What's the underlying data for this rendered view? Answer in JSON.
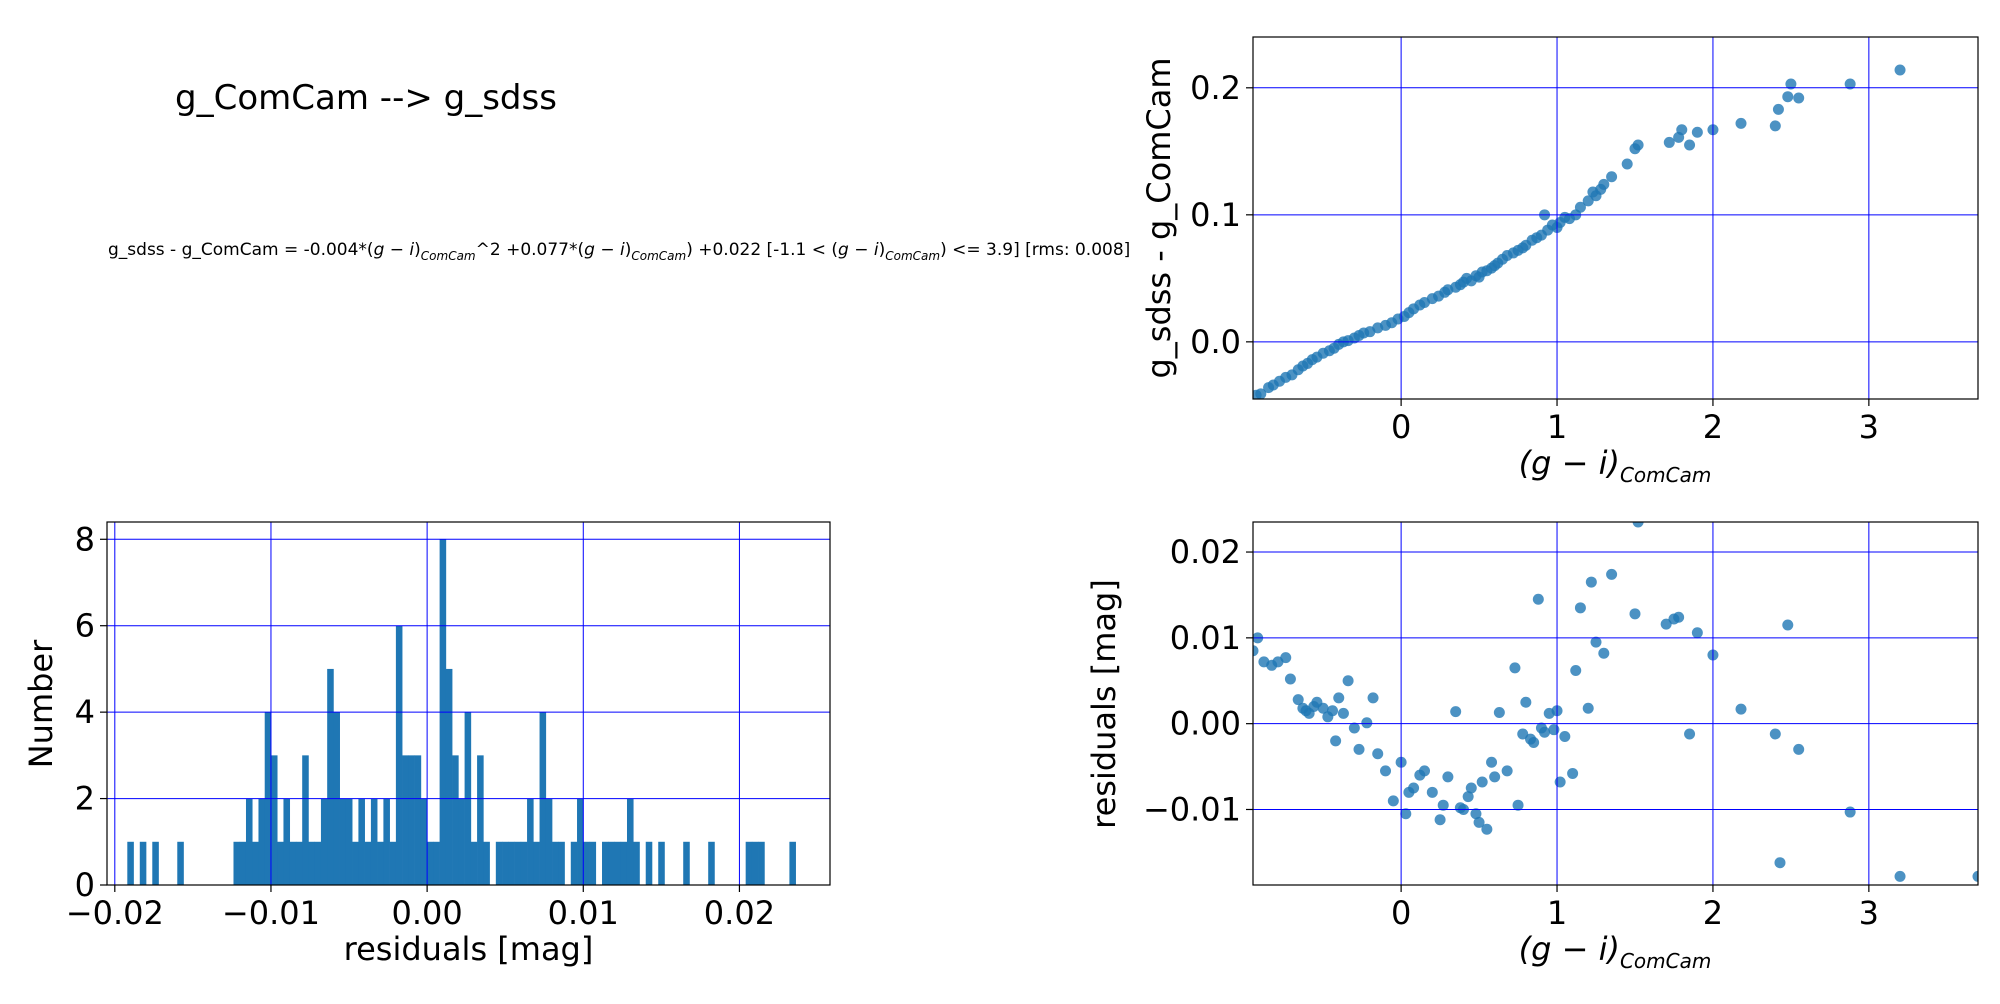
{
  "title": "g_ComCam --> g_sdss",
  "equation": {
    "prefix": "g_sdss - g_ComCam = -0.004*(",
    "var": "g − i",
    "sub": "ComCam",
    "p1": ")",
    "p2": "^2 +0.077*(",
    "p3": ") +0.022  [-1.1 < (",
    "p4": ") <= 3.9]  [rms: 0.008]"
  },
  "xlabel_color": {
    "main": "(g − i)",
    "sub": "ComCam"
  },
  "grid_color": "#0000ff",
  "marker_color": "#1f77b4",
  "chart_data": [
    {
      "id": "color-term",
      "type": "scatter",
      "ylabel": "g_sdss - g_ComCam",
      "xlim": [
        -0.95,
        3.7
      ],
      "ylim": [
        -0.045,
        0.24
      ],
      "xticks": [
        0,
        1,
        2,
        3
      ],
      "yticks": [
        0.0,
        0.1,
        0.2
      ],
      "ytick_labels": [
        "0.0",
        "0.1",
        "0.2"
      ],
      "grid": true,
      "x": [
        -0.93,
        -0.9,
        -0.85,
        -0.82,
        -0.78,
        -0.74,
        -0.7,
        -0.66,
        -0.63,
        -0.6,
        -0.57,
        -0.54,
        -0.5,
        -0.46,
        -0.43,
        -0.4,
        -0.37,
        -0.34,
        -0.3,
        -0.27,
        -0.24,
        -0.2,
        -0.15,
        -0.1,
        -0.06,
        -0.02,
        0.02,
        0.05,
        0.08,
        0.12,
        0.15,
        0.2,
        0.24,
        0.28,
        0.3,
        0.35,
        0.38,
        0.4,
        0.42,
        0.45,
        0.48,
        0.5,
        0.52,
        0.55,
        0.58,
        0.6,
        0.62,
        0.65,
        0.68,
        0.72,
        0.75,
        0.78,
        0.8,
        0.84,
        0.87,
        0.9,
        0.92,
        0.94,
        0.97,
        1.0,
        1.02,
        1.05,
        1.08,
        1.12,
        1.15,
        1.2,
        1.23,
        1.25,
        1.28,
        1.3,
        1.35,
        1.45,
        1.5,
        1.52,
        1.72,
        1.78,
        1.8,
        1.85,
        1.9,
        2.0,
        2.18,
        2.4,
        2.42,
        2.48,
        2.5,
        2.55,
        2.88,
        3.2
      ],
      "y": [
        -0.042,
        -0.041,
        -0.036,
        -0.034,
        -0.031,
        -0.028,
        -0.026,
        -0.022,
        -0.019,
        -0.017,
        -0.014,
        -0.012,
        -0.009,
        -0.007,
        -0.005,
        -0.002,
        0.0,
        0.001,
        0.003,
        0.005,
        0.007,
        0.008,
        0.011,
        0.013,
        0.015,
        0.018,
        0.02,
        0.023,
        0.026,
        0.029,
        0.031,
        0.034,
        0.036,
        0.039,
        0.041,
        0.043,
        0.045,
        0.047,
        0.05,
        0.048,
        0.052,
        0.051,
        0.055,
        0.056,
        0.058,
        0.06,
        0.062,
        0.065,
        0.068,
        0.07,
        0.072,
        0.074,
        0.076,
        0.08,
        0.082,
        0.084,
        0.1,
        0.088,
        0.092,
        0.09,
        0.094,
        0.098,
        0.097,
        0.1,
        0.106,
        0.111,
        0.118,
        0.115,
        0.12,
        0.124,
        0.13,
        0.14,
        0.152,
        0.155,
        0.157,
        0.161,
        0.167,
        0.155,
        0.165,
        0.167,
        0.172,
        0.17,
        0.183,
        0.193,
        0.203,
        0.192,
        0.203,
        0.214
      ]
    },
    {
      "id": "residual-histogram",
      "type": "bar",
      "xlabel": "residuals [mag]",
      "ylabel": "Number",
      "xlim": [
        -0.0205,
        0.0258
      ],
      "ylim": [
        0,
        8.4
      ],
      "xticks": [
        -0.02,
        -0.01,
        0.0,
        0.01,
        0.02
      ],
      "xtick_labels": [
        "−0.02",
        "−0.01",
        "0.00",
        "0.01",
        "0.02"
      ],
      "yticks": [
        0,
        2,
        4,
        6,
        8
      ],
      "ytick_labels": [
        "0",
        "2",
        "4",
        "6",
        "8"
      ],
      "grid": true,
      "bin_width": 0.00042,
      "bins": [
        -0.0192,
        -0.0184,
        -0.0176,
        -0.016,
        -0.0124,
        -0.012,
        -0.0116,
        -0.0112,
        -0.0108,
        -0.0104,
        -0.01,
        -0.0096,
        -0.0092,
        -0.0088,
        -0.0084,
        -0.008,
        -0.0076,
        -0.0072,
        -0.0068,
        -0.0064,
        -0.006,
        -0.0056,
        -0.0052,
        -0.0048,
        -0.0044,
        -0.004,
        -0.0036,
        -0.0032,
        -0.0028,
        -0.0024,
        -0.002,
        -0.0016,
        -0.0012,
        -0.0008,
        -0.0004,
        0.0,
        0.0004,
        0.0008,
        0.0012,
        0.0016,
        0.002,
        0.0024,
        0.0028,
        0.0032,
        0.0036,
        0.0044,
        0.0048,
        0.0052,
        0.0056,
        0.006,
        0.0064,
        0.0068,
        0.0072,
        0.0076,
        0.008,
        0.0084,
        0.0092,
        0.0096,
        0.01,
        0.0104,
        0.0112,
        0.0116,
        0.012,
        0.0124,
        0.0128,
        0.0132,
        0.014,
        0.0148,
        0.0164,
        0.018,
        0.0204,
        0.0208,
        0.0212,
        0.0232
      ],
      "values": [
        1,
        1,
        1,
        1,
        1,
        1,
        2,
        1,
        2,
        4,
        3,
        1,
        2,
        1,
        1,
        3,
        1,
        1,
        2,
        5,
        4,
        2,
        2,
        1,
        2,
        1,
        2,
        1,
        2,
        1,
        6,
        3,
        3,
        3,
        2,
        1,
        1,
        8,
        5,
        3,
        2,
        4,
        1,
        3,
        1,
        1,
        1,
        1,
        1,
        1,
        2,
        1,
        4,
        2,
        1,
        1,
        1,
        2,
        1,
        1,
        1,
        1,
        1,
        1,
        2,
        1,
        1,
        1,
        1,
        1,
        1,
        1,
        1,
        1
      ]
    },
    {
      "id": "residuals-vs-color",
      "type": "scatter",
      "ylabel": "residuals [mag]",
      "xlim": [
        -0.95,
        3.7
      ],
      "ylim": [
        -0.0188,
        0.0235
      ],
      "xticks": [
        0,
        1,
        2,
        3
      ],
      "yticks": [
        -0.01,
        0.0,
        0.01,
        0.02
      ],
      "ytick_labels": [
        "−0.01",
        "0.00",
        "0.01",
        "0.02"
      ],
      "grid": true,
      "x": [
        -0.95,
        -0.92,
        -0.88,
        -0.83,
        -0.79,
        -0.74,
        -0.71,
        -0.66,
        -0.63,
        -0.61,
        -0.59,
        -0.56,
        -0.54,
        -0.5,
        -0.47,
        -0.44,
        -0.42,
        -0.4,
        -0.37,
        -0.34,
        -0.3,
        -0.27,
        -0.22,
        -0.18,
        -0.15,
        -0.1,
        -0.05,
        0.0,
        0.03,
        0.05,
        0.08,
        0.12,
        0.15,
        0.2,
        0.25,
        0.27,
        0.3,
        0.35,
        0.38,
        0.4,
        0.43,
        0.45,
        0.48,
        0.5,
        0.52,
        0.55,
        0.58,
        0.6,
        0.63,
        0.68,
        0.73,
        0.75,
        0.78,
        0.8,
        0.83,
        0.85,
        0.88,
        0.9,
        0.92,
        0.95,
        0.98,
        1.0,
        1.02,
        1.05,
        1.1,
        1.12,
        1.15,
        1.2,
        1.22,
        1.25,
        1.3,
        1.35,
        1.5,
        1.52,
        1.7,
        1.75,
        1.78,
        1.85,
        1.9,
        2.0,
        2.18,
        2.4,
        2.43,
        2.48,
        2.55,
        2.88,
        3.2,
        3.7
      ],
      "y": [
        0.0085,
        0.01,
        0.0072,
        0.0068,
        0.0072,
        0.0077,
        0.0052,
        0.0028,
        0.0018,
        0.0015,
        0.0012,
        0.002,
        0.0025,
        0.0018,
        0.0008,
        0.0015,
        -0.002,
        0.003,
        0.0012,
        0.005,
        -0.0005,
        -0.003,
        0.0001,
        0.003,
        -0.0035,
        -0.0055,
        -0.009,
        -0.0045,
        -0.0105,
        -0.008,
        -0.0075,
        -0.006,
        -0.0055,
        -0.008,
        -0.0112,
        -0.0095,
        -0.0062,
        0.0014,
        -0.0098,
        -0.01,
        -0.0085,
        -0.0075,
        -0.0105,
        -0.0115,
        -0.0068,
        -0.0123,
        -0.0045,
        -0.0062,
        0.0013,
        -0.0055,
        0.0065,
        -0.0095,
        -0.0012,
        0.0025,
        -0.0018,
        -0.0022,
        0.0145,
        -0.0005,
        -0.001,
        0.0012,
        -0.0007,
        0.0015,
        -0.0068,
        -0.0015,
        -0.0058,
        0.0062,
        0.0135,
        0.0018,
        0.0165,
        0.0095,
        0.0082,
        0.0174,
        0.0128,
        0.0235,
        0.0116,
        0.0122,
        0.0124,
        -0.0012,
        0.0106,
        0.008,
        0.0017,
        -0.0012,
        -0.0162,
        0.0115,
        -0.003,
        -0.0103,
        -0.0178,
        -0.0178
      ]
    }
  ]
}
